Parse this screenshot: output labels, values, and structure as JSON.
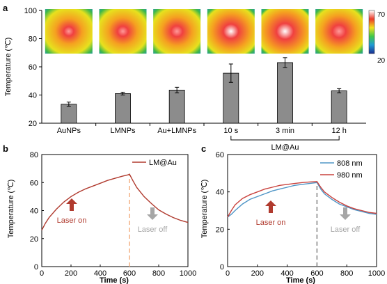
{
  "chart_data": [
    {
      "panel": "a",
      "type": "bar",
      "categories": [
        "AuNPs",
        "LMNPs",
        "Au+LMNPs",
        "10 s",
        "3 min",
        "12 h"
      ],
      "values": [
        33.5,
        41.0,
        43.5,
        55.5,
        63.0,
        43.0
      ],
      "errors": [
        1.5,
        1.0,
        2.0,
        6.5,
        3.5,
        1.5
      ],
      "ylabel": "Temperature (℃)",
      "ylim": [
        20,
        100
      ],
      "yticks": [
        20,
        40,
        60,
        80,
        100
      ],
      "group_label": "LM@Au",
      "group_categories": [
        "10 s",
        "3 min",
        "12 h"
      ],
      "colorbar": {
        "max": "70",
        "min": "20"
      },
      "thermal_image_intensity": [
        0.55,
        0.6,
        0.65,
        0.85,
        0.95,
        0.75
      ],
      "bar_color": "#8c8c8c"
    },
    {
      "panel": "b",
      "type": "line",
      "xlabel": "Time (s)",
      "ylabel": "Temperature (℃)",
      "xlim": [
        0,
        1000
      ],
      "ylim": [
        0,
        80
      ],
      "xticks": [
        0,
        200,
        400,
        600,
        800,
        1000
      ],
      "yticks": [
        0,
        20,
        40,
        60,
        80
      ],
      "series": [
        {
          "name": "LM@Au",
          "color": "#b03a2e",
          "x": [
            0,
            25,
            50,
            100,
            150,
            200,
            250,
            300,
            350,
            400,
            450,
            500,
            550,
            590,
            600,
            625,
            650,
            700,
            750,
            800,
            850,
            900,
            950,
            1000
          ],
          "y": [
            26,
            31,
            35,
            41,
            46,
            50,
            53,
            55.5,
            57.5,
            59.5,
            61.5,
            63,
            64.5,
            65.5,
            66,
            61,
            56.5,
            50,
            45,
            40.5,
            37.5,
            35,
            33,
            31.5
          ]
        }
      ],
      "laser_switch_x": 600,
      "switch_line_color": "#f4b183",
      "annotations": [
        {
          "text": "Laser on",
          "color": "#b03a2e"
        },
        {
          "text": "Laser off",
          "color": "#a6a6a6"
        }
      ]
    },
    {
      "panel": "c",
      "type": "line",
      "xlabel": "Time (s)",
      "ylabel": "Temperature (℃)",
      "xlim": [
        0,
        1000
      ],
      "ylim": [
        0,
        60
      ],
      "xticks": [
        0,
        200,
        400,
        600,
        800,
        1000
      ],
      "yticks": [
        0,
        20,
        40,
        60
      ],
      "series": [
        {
          "name": "808 nm",
          "color": "#4f95c6",
          "x": [
            0,
            25,
            50,
            100,
            150,
            200,
            250,
            300,
            350,
            400,
            450,
            500,
            550,
            600,
            625,
            650,
            700,
            750,
            800,
            850,
            900,
            950,
            1000
          ],
          "y": [
            26.5,
            28,
            30,
            33.5,
            36,
            37.5,
            39,
            40.5,
            41.5,
            42.5,
            43.5,
            44,
            44.5,
            45,
            41.5,
            39,
            36,
            33.5,
            32,
            30.5,
            29.5,
            28.5,
            28
          ]
        },
        {
          "name": "980 nm",
          "color": "#c9423d",
          "x": [
            0,
            25,
            50,
            100,
            150,
            200,
            250,
            300,
            350,
            400,
            450,
            500,
            550,
            600,
            625,
            650,
            700,
            750,
            800,
            850,
            900,
            950,
            1000
          ],
          "y": [
            26.5,
            30,
            33,
            36.5,
            38.5,
            40,
            41.5,
            42.5,
            43.5,
            44,
            44.5,
            45,
            45.3,
            45.5,
            42.5,
            40,
            37,
            34.5,
            32.5,
            31,
            30,
            29,
            28.5
          ]
        }
      ],
      "laser_switch_x": 600,
      "switch_line_color": "#808080",
      "annotations": [
        {
          "text": "Laser on",
          "color": "#b03a2e"
        },
        {
          "text": "Laser off",
          "color": "#a6a6a6"
        }
      ]
    }
  ]
}
